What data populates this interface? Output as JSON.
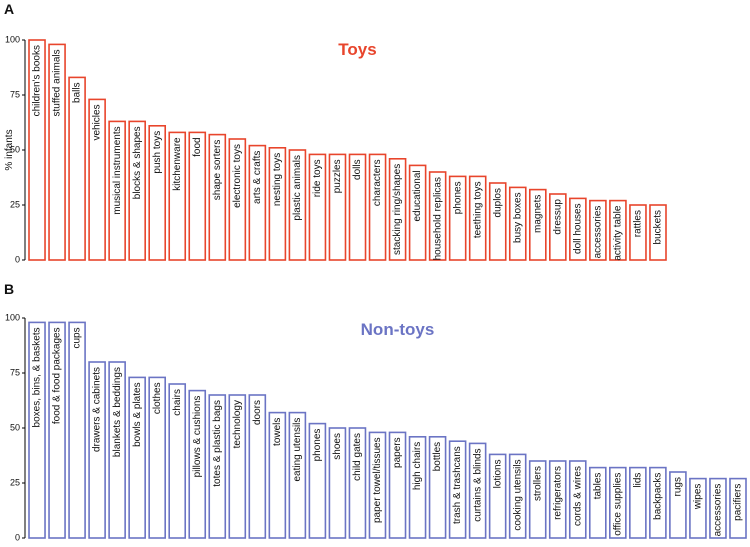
{
  "chart_data": [
    {
      "type": "bar",
      "panel_label": "A",
      "title": "Toys",
      "ylabel": "% infants",
      "color": "#e8452c",
      "categories": [
        "children's books",
        "stuffed animals",
        "balls",
        "vehicles",
        "musical instruments",
        "blocks & shapes",
        "push toys",
        "kitchenware",
        "food",
        "shape sorters",
        "electronic toys",
        "arts & crafts",
        "nesting toys",
        "plastic animals",
        "ride toys",
        "puzzles",
        "dolls",
        "characters",
        "stacking ring/shapes",
        "educational",
        "household replicas",
        "phones",
        "teething toys",
        "duplos",
        "busy boxes",
        "magnets",
        "dressup",
        "doll houses",
        "accessories",
        "activity table",
        "rattles",
        "buckets"
      ],
      "values": [
        100,
        98,
        83,
        73,
        63,
        63,
        61,
        58,
        58,
        57,
        55,
        52,
        51,
        50,
        48,
        48,
        48,
        48,
        46,
        43,
        40,
        38,
        38,
        35,
        33,
        32,
        30,
        28,
        27,
        27,
        25,
        25
      ],
      "ylim": [
        0,
        100
      ],
      "yticks": [
        0,
        25,
        50,
        75,
        100
      ]
    },
    {
      "type": "bar",
      "panel_label": "B",
      "title": "Non-toys",
      "color": "#6b74c4",
      "categories": [
        "boxes, bins, & baskets",
        "food & food packages",
        "cups",
        "drawers & cabinets",
        "blankets & beddings",
        "bowls & plates",
        "clothes",
        "chairs",
        "pillows & cushions",
        "totes & plastic bags",
        "technology",
        "doors",
        "towels",
        "eating utensils",
        "phones",
        "shoes",
        "child gates",
        "paper towel/tissues",
        "papers",
        "high chairs",
        "bottles",
        "trash & trashcans",
        "curtains & blinds",
        "lotions",
        "cooking utensils",
        "strollers",
        "refrigerators",
        "cords & wires",
        "tables",
        "office supplies",
        "lids",
        "backpacks",
        "rugs",
        "wipes",
        "accessories",
        "pacifiers"
      ],
      "values": [
        98,
        98,
        98,
        80,
        80,
        73,
        73,
        70,
        67,
        65,
        65,
        65,
        57,
        57,
        52,
        50,
        50,
        48,
        48,
        46,
        46,
        44,
        43,
        38,
        38,
        35,
        35,
        35,
        32,
        32,
        32,
        32,
        30,
        27,
        27,
        27
      ],
      "ylim": [
        0,
        100
      ],
      "yticks": [
        0,
        25,
        50,
        75,
        100
      ]
    }
  ]
}
